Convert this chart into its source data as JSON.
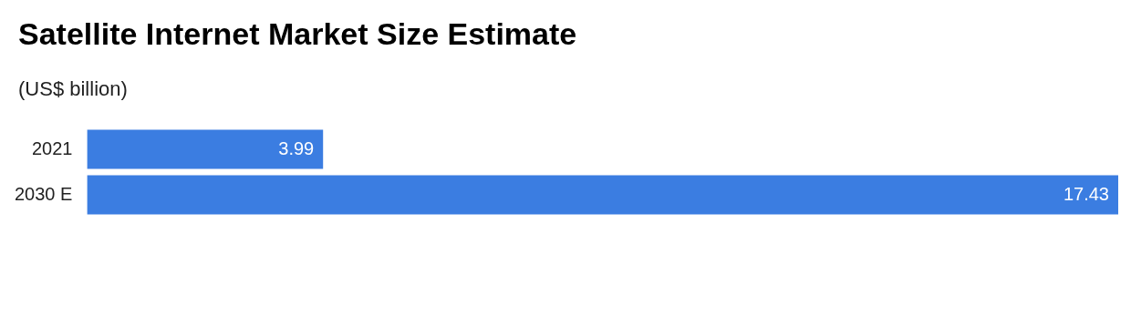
{
  "chart_data": {
    "type": "bar",
    "orientation": "horizontal",
    "title": "Satellite Internet Market Size Estimate",
    "subtitle": "(US$ billion)",
    "categories": [
      "2021",
      "2030 E"
    ],
    "values": [
      3.99,
      17.43
    ],
    "color": "#3b7de1",
    "data_labels": true,
    "legend": false
  }
}
